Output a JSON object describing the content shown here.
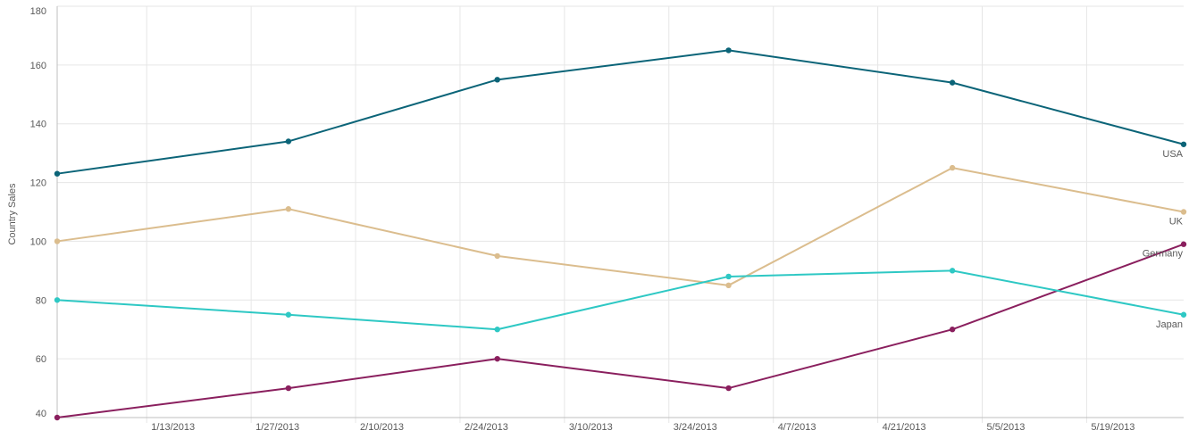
{
  "chart_data": {
    "type": "line",
    "ylabel": "Country Sales",
    "xlabel": "",
    "ylim": [
      40,
      180
    ],
    "y_ticks": [
      40,
      60,
      80,
      100,
      120,
      140,
      160,
      180
    ],
    "xlim": [
      "2013-01-01",
      "2013-06-01"
    ],
    "x_tick_dates": [
      "2013-01-13",
      "2013-01-27",
      "2013-02-10",
      "2013-02-24",
      "2013-03-10",
      "2013-03-24",
      "2013-04-07",
      "2013-04-21",
      "2013-05-05",
      "2013-05-19"
    ],
    "x_tick_labels": [
      "1/13/2013",
      "1/27/2013",
      "2/10/2013",
      "2/24/2013",
      "3/10/2013",
      "3/24/2013",
      "4/7/2013",
      "4/21/2013",
      "5/5/2013",
      "5/19/2013"
    ],
    "grid": true,
    "x": [
      "2013-01-01",
      "2013-02-01",
      "2013-03-01",
      "2013-04-01",
      "2013-05-01",
      "2013-06-01"
    ],
    "series": [
      {
        "name": "USA",
        "color": "#0b6478",
        "values": [
          123,
          134,
          155,
          165,
          154,
          133
        ]
      },
      {
        "name": "UK",
        "color": "#dbbd8e",
        "values": [
          100,
          111,
          95,
          85,
          125,
          110
        ]
      },
      {
        "name": "Germany",
        "color": "#8a1f5e",
        "values": [
          40,
          50,
          60,
          50,
          70,
          99
        ]
      },
      {
        "name": "Japan",
        "color": "#2ec8c4",
        "values": [
          80,
          75,
          70,
          88,
          90,
          75
        ]
      }
    ]
  }
}
